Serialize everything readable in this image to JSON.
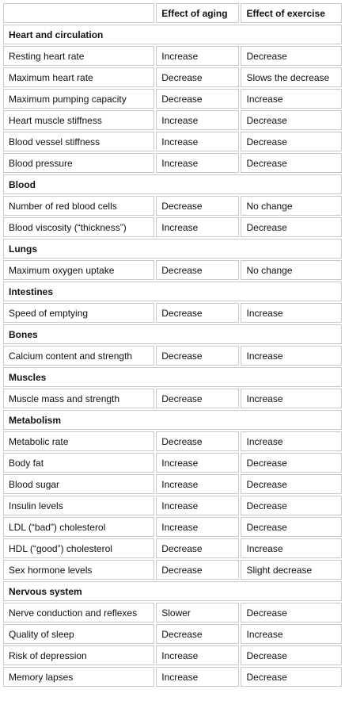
{
  "table": {
    "headers": [
      "",
      "Effect of aging",
      "Effect of exercise"
    ],
    "sections": [
      {
        "title": "Heart and circulation",
        "rows": [
          [
            "Resting heart rate",
            "Increase",
            "Decrease"
          ],
          [
            "Maximum heart rate",
            "Decrease",
            "Slows the decrease"
          ],
          [
            "Maximum pumping capacity",
            "Decrease",
            "Increase"
          ],
          [
            "Heart muscle stiffness",
            "Increase",
            "Decrease"
          ],
          [
            "Blood vessel stiffness",
            "Increase",
            "Decrease"
          ],
          [
            "Blood pressure",
            "Increase",
            "Decrease"
          ]
        ]
      },
      {
        "title": "Blood",
        "rows": [
          [
            "Number of red blood cells",
            "Decrease",
            "No change"
          ],
          [
            "Blood viscosity (“thickness”)",
            "Increase",
            "Decrease"
          ]
        ]
      },
      {
        "title": "Lungs",
        "rows": [
          [
            "Maximum oxygen uptake",
            "Decrease",
            "No change"
          ]
        ]
      },
      {
        "title": "Intestines",
        "rows": [
          [
            "Speed of emptying",
            "Decrease",
            "Increase"
          ]
        ]
      },
      {
        "title": "Bones",
        "rows": [
          [
            "Calcium content and strength",
            "Decrease",
            "Increase"
          ]
        ]
      },
      {
        "title": "Muscles",
        "rows": [
          [
            "Muscle mass and strength",
            "Decrease",
            "Increase"
          ]
        ]
      },
      {
        "title": "Metabolism",
        "rows": [
          [
            "Metabolic rate",
            "Decrease",
            "Increase"
          ],
          [
            "Body fat",
            "Increase",
            "Decrease"
          ],
          [
            "Blood sugar",
            "Increase",
            "Decrease"
          ],
          [
            "Insulin levels",
            "Increase",
            "Decrease"
          ],
          [
            "LDL (“bad”) cholesterol",
            "Increase",
            "Decrease"
          ],
          [
            "HDL (“good”) cholesterol",
            "Decrease",
            "Increase"
          ],
          [
            "Sex hormone levels",
            "Decrease",
            "Slight decrease"
          ]
        ]
      },
      {
        "title": "Nervous system",
        "rows": [
          [
            "Nerve conduction and reflexes",
            "Slower",
            "Decrease"
          ],
          [
            "Quality of sleep",
            "Decrease",
            "Increase"
          ],
          [
            "Risk of depression",
            "Increase",
            "Decrease"
          ],
          [
            "Memory lapses",
            "Increase",
            "Decrease"
          ]
        ]
      }
    ]
  }
}
